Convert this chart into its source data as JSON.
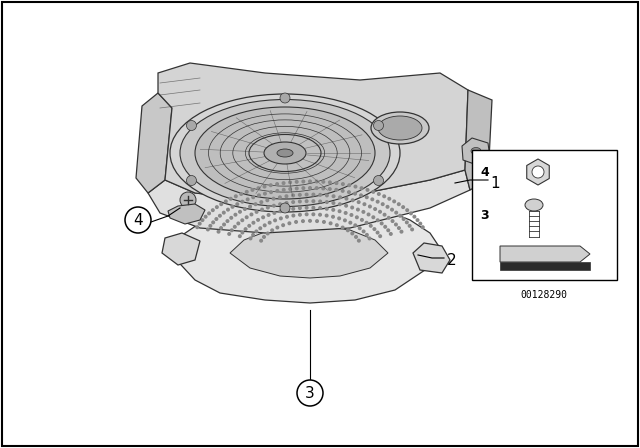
{
  "background_color": "#ffffff",
  "border_color": "#000000",
  "figure_width": 6.4,
  "figure_height": 4.48,
  "dpi": 100,
  "part_number": "00128290"
}
